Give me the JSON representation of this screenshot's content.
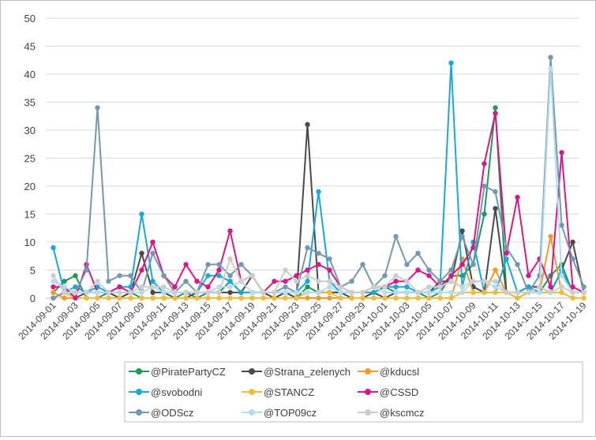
{
  "chart_data": {
    "type": "line",
    "title": "",
    "xlabel": "",
    "ylabel": "",
    "ylim": [
      0,
      50
    ],
    "yticks": [
      0,
      5,
      10,
      15,
      20,
      25,
      30,
      35,
      40,
      45,
      50
    ],
    "grid": "horizontal",
    "legend_position": "bottom",
    "categories": [
      "2014-09-01",
      "2014-09-02",
      "2014-09-03",
      "2014-09-04",
      "2014-09-05",
      "2014-09-06",
      "2014-09-07",
      "2014-09-08",
      "2014-09-09",
      "2014-09-10",
      "2014-09-11",
      "2014-09-12",
      "2014-09-13",
      "2014-09-14",
      "2014-09-15",
      "2014-09-16",
      "2014-09-17",
      "2014-09-18",
      "2014-09-19",
      "2014-09-20",
      "2014-09-21",
      "2014-09-22",
      "2014-09-23",
      "2014-09-24",
      "2014-09-25",
      "2014-09-26",
      "2014-09-27",
      "2014-09-28",
      "2014-09-29",
      "2014-09-30",
      "2014-10-01",
      "2014-10-02",
      "2014-10-03",
      "2014-10-04",
      "2014-10-05",
      "2014-10-06",
      "2014-10-07",
      "2014-10-08",
      "2014-10-09",
      "2014-10-10",
      "2014-10-11",
      "2014-10-12",
      "2014-10-13",
      "2014-10-14",
      "2014-10-15",
      "2014-10-16",
      "2014-10-17",
      "2014-10-18",
      "2014-10-19"
    ],
    "xtick_labels": [
      "2014-09-01",
      "2014-09-03",
      "2014-09-05",
      "2014-09-07",
      "2014-09-09",
      "2014-09-11",
      "2014-09-13",
      "2014-09-15",
      "2014-09-17",
      "2014-09-19",
      "2014-09-21",
      "2014-09-23",
      "2014-09-25",
      "2014-09-27",
      "2014-09-29",
      "2014-10-01",
      "2014-10-03",
      "2014-10-05",
      "2014-10-07",
      "2014-10-09",
      "2014-10-11",
      "2014-10-13",
      "2014-10-15",
      "2014-10-17",
      "2014-10-19"
    ],
    "series": [
      {
        "name": "@PiratePartyCZ",
        "color": "#1e9b58",
        "values": [
          1,
          3,
          4,
          0,
          0,
          1,
          0,
          1,
          0,
          0,
          0,
          0,
          1,
          0,
          1,
          1,
          3,
          1,
          1,
          1,
          0,
          1,
          0,
          2,
          1,
          1,
          1,
          0,
          0,
          1,
          2,
          1,
          1,
          1,
          0,
          1,
          4,
          4,
          6,
          15,
          34,
          1,
          0,
          1,
          1,
          4,
          6,
          1,
          1
        ]
      },
      {
        "name": "@Strana_zelenych",
        "color": "#4a4a4a",
        "values": [
          0,
          1,
          0,
          1,
          1,
          1,
          0,
          1,
          8,
          1,
          1,
          0,
          0,
          1,
          1,
          1,
          1,
          1,
          4,
          1,
          0,
          1,
          0,
          31,
          1,
          1,
          1,
          0,
          0,
          1,
          0,
          1,
          1,
          1,
          1,
          3,
          3,
          12,
          2,
          1,
          16,
          1,
          1,
          2,
          2,
          1,
          5,
          10,
          1
        ]
      },
      {
        "name": "@kducsl",
        "color": "#f29a2e",
        "values": [
          1,
          0,
          0,
          0,
          0,
          0,
          0,
          0,
          0,
          0,
          0,
          0,
          0,
          0,
          0,
          0,
          0,
          0,
          0,
          0,
          0,
          0,
          0,
          0,
          0,
          0,
          0,
          0,
          0,
          0,
          0,
          0,
          0,
          0,
          0,
          0,
          0,
          7,
          1,
          1,
          5,
          1,
          1,
          1,
          1,
          11,
          1,
          0,
          0
        ]
      },
      {
        "name": "@svobodni",
        "color": "#17a9d8",
        "values": [
          9,
          1,
          2,
          1,
          2,
          1,
          2,
          2,
          15,
          3,
          1,
          1,
          1,
          1,
          4,
          4,
          3,
          1,
          1,
          1,
          1,
          1,
          1,
          3,
          19,
          3,
          1,
          1,
          1,
          1,
          2,
          2,
          2,
          1,
          1,
          2,
          42,
          2,
          10,
          1,
          1,
          7,
          1,
          2,
          1,
          1,
          5,
          1,
          1
        ]
      },
      {
        "name": "@STANCZ",
        "color": "#f2bd3c",
        "values": [
          0,
          1,
          0,
          0,
          0,
          0,
          0,
          0,
          0,
          0,
          0,
          0,
          0,
          0,
          0,
          0,
          0,
          0,
          0,
          0,
          0,
          0,
          0,
          1,
          1,
          1,
          0,
          0,
          0,
          0,
          0,
          0,
          0,
          0,
          0,
          0,
          0,
          1,
          1,
          1,
          1,
          1,
          0,
          1,
          1,
          1,
          1,
          0,
          0
        ]
      },
      {
        "name": "@CSSD",
        "color": "#d6188a",
        "values": [
          2,
          2,
          0,
          6,
          1,
          1,
          2,
          1,
          5,
          10,
          4,
          2,
          6,
          3,
          2,
          5,
          12,
          3,
          4,
          1,
          3,
          3,
          4,
          5,
          6,
          5,
          2,
          1,
          1,
          2,
          2,
          3,
          3,
          5,
          4,
          2,
          4,
          6,
          9,
          24,
          33,
          8,
          18,
          4,
          7,
          2,
          26,
          2,
          1
        ]
      },
      {
        "name": "@ODScz",
        "color": "#7498b0",
        "values": [
          0,
          1,
          1,
          5,
          34,
          3,
          4,
          4,
          1,
          8,
          4,
          1,
          3,
          1,
          6,
          6,
          4,
          6,
          4,
          1,
          1,
          2,
          1,
          9,
          8,
          7,
          2,
          3,
          6,
          2,
          4,
          11,
          6,
          8,
          5,
          3,
          5,
          11,
          6,
          20,
          19,
          9,
          6,
          1,
          4,
          43,
          13,
          7,
          2
        ]
      },
      {
        "name": "@TOP09cz",
        "color": "#b4dcf0",
        "values": [
          3,
          2,
          1,
          1,
          1,
          1,
          1,
          1,
          1,
          2,
          1,
          1,
          1,
          1,
          1,
          2,
          2,
          3,
          1,
          1,
          1,
          1,
          1,
          1,
          1,
          2,
          1,
          1,
          1,
          2,
          1,
          1,
          1,
          1,
          1,
          1,
          1,
          1,
          3,
          3,
          2,
          1,
          1,
          1,
          1,
          41,
          4,
          1,
          1
        ]
      },
      {
        "name": "@kscmcz",
        "color": "#cdcdcd",
        "values": [
          4,
          1,
          1,
          1,
          3,
          1,
          1,
          1,
          2,
          2,
          2,
          1,
          1,
          1,
          1,
          1,
          7,
          3,
          4,
          1,
          1,
          5,
          3,
          4,
          3,
          3,
          2,
          1,
          1,
          2,
          2,
          4,
          3,
          1,
          2,
          2,
          3,
          2,
          3,
          3,
          3,
          1,
          1,
          1,
          2,
          1,
          2,
          1,
          1
        ]
      }
    ]
  }
}
